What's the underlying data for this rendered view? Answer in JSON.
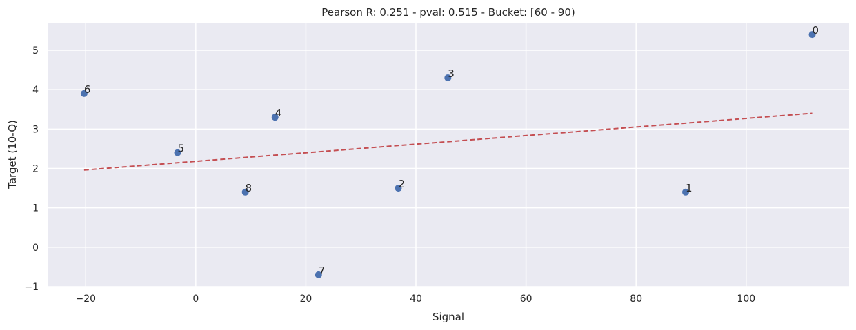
{
  "chart_data": {
    "type": "scatter",
    "title": "Pearson R: 0.251 - pval: 0.515 - Bucket: [60 - 90)",
    "xlabel": "Signal",
    "ylabel": "Target (10-Q)",
    "xlim": [
      -26.8,
      118.7
    ],
    "ylim": [
      -1.0,
      5.7
    ],
    "xticks": [
      -20,
      0,
      20,
      40,
      60,
      80,
      100
    ],
    "yticks": [
      -1,
      0,
      1,
      2,
      3,
      4,
      5
    ],
    "xtick_labels": [
      "−20",
      "0",
      "20",
      "40",
      "60",
      "80",
      "100"
    ],
    "ytick_labels": [
      "−1",
      "0",
      "1",
      "2",
      "3",
      "4",
      "5"
    ],
    "grid": true,
    "points": [
      {
        "label": "0",
        "x": 112.0,
        "y": 5.4
      },
      {
        "label": "1",
        "x": 89.0,
        "y": 1.4
      },
      {
        "label": "2",
        "x": 36.8,
        "y": 1.5
      },
      {
        "label": "3",
        "x": 45.8,
        "y": 4.3
      },
      {
        "label": "4",
        "x": 14.4,
        "y": 3.3
      },
      {
        "label": "5",
        "x": -3.3,
        "y": 2.4
      },
      {
        "label": "6",
        "x": -20.3,
        "y": 3.9
      },
      {
        "label": "7",
        "x": 22.3,
        "y": -0.7
      },
      {
        "label": "8",
        "x": 9.0,
        "y": 1.4
      }
    ],
    "trend_line": {
      "x": [
        -20.3,
        112.0
      ],
      "y": [
        1.96,
        3.4
      ],
      "style": "dashed"
    },
    "colors": {
      "background": "#eaeaf2",
      "grid": "#ffffff",
      "points": "#4c72b0",
      "trend_line": "#c44e52"
    }
  }
}
